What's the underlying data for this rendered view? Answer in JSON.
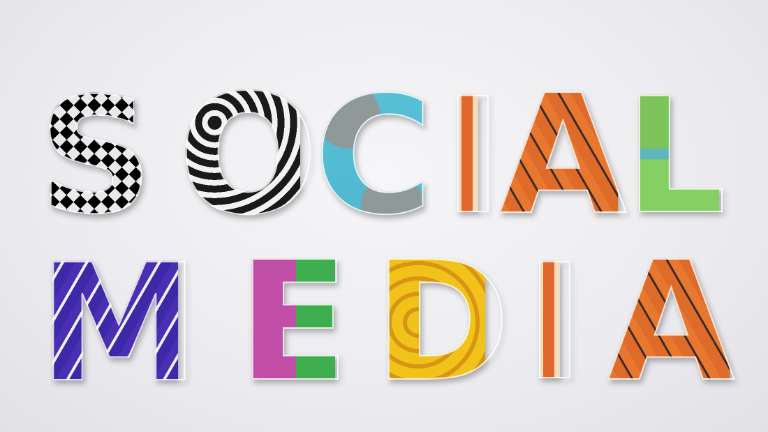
{
  "words": {
    "row1": [
      "S",
      "O",
      "C",
      "I",
      "A",
      "L"
    ],
    "row2": [
      "M",
      "E",
      "D",
      "I",
      "A"
    ]
  },
  "colors": {
    "background": "#ecebef",
    "s": "#111111",
    "o": "#1a1a1a",
    "c": "#58c1d6",
    "i": "#e2672a",
    "a": "#df6b2a",
    "l": "#7cc45a",
    "m": "#4b2fb3",
    "e": "#c24fa7",
    "d": "#f1c21a"
  }
}
